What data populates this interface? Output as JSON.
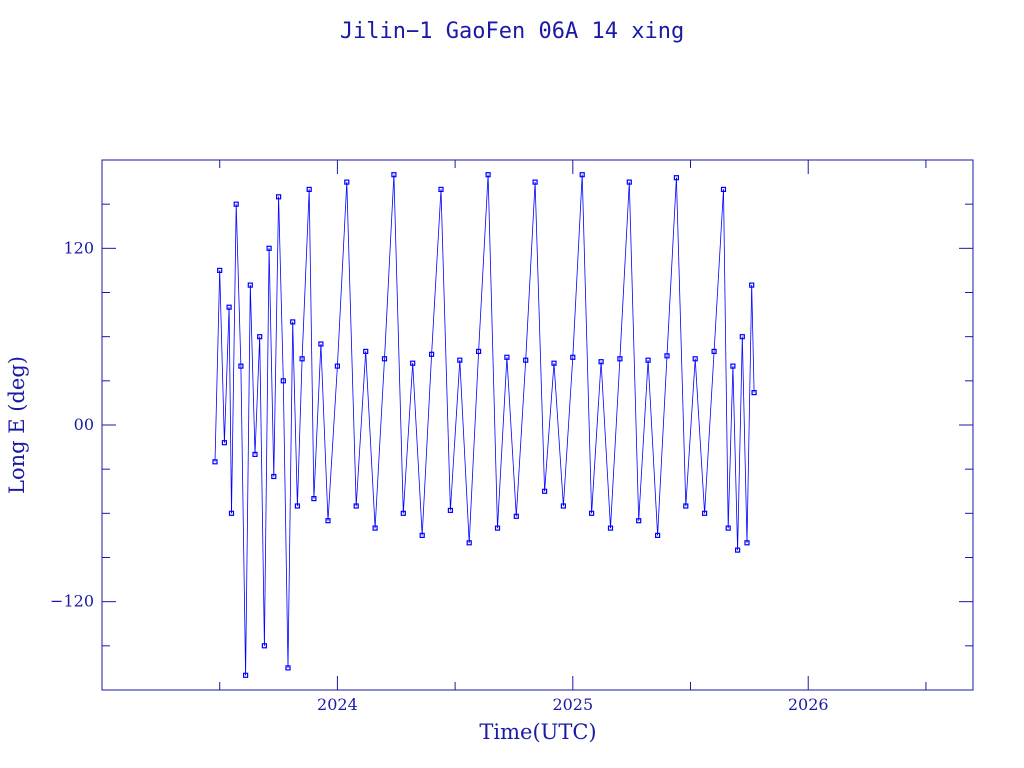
{
  "colors": {
    "series": "#0000ff",
    "frame": "#1a1aa6",
    "text": "#1a1aa6",
    "background": "#ffffff"
  },
  "chart_data": {
    "type": "scatter",
    "title": "Jilin−1 GaoFen 06A 14 xing",
    "xlabel": "Time(UTC)",
    "ylabel": "Long E (deg)",
    "xlim": [
      2023.0,
      2026.7
    ],
    "ylim": [
      -180,
      180
    ],
    "x_ticks": [
      {
        "value": 2024,
        "label": "2024"
      },
      {
        "value": 2025,
        "label": "2025"
      },
      {
        "value": 2026,
        "label": "2026"
      }
    ],
    "y_ticks": [
      {
        "value": 120,
        "label": "120"
      },
      {
        "value": 0,
        "label": "00"
      },
      {
        "value": -120,
        "label": "−120"
      }
    ],
    "grid": false,
    "markers": "squares connected by thin lines",
    "series": [
      {
        "points": [
          [
            2023.48,
            -25
          ],
          [
            2023.5,
            105
          ],
          [
            2023.52,
            -12
          ],
          [
            2023.54,
            80
          ],
          [
            2023.55,
            -60
          ],
          [
            2023.57,
            150
          ],
          [
            2023.59,
            40
          ],
          [
            2023.61,
            -170
          ],
          [
            2023.63,
            95
          ],
          [
            2023.65,
            -20
          ],
          [
            2023.67,
            60
          ],
          [
            2023.69,
            -150
          ],
          [
            2023.71,
            120
          ],
          [
            2023.73,
            -35
          ],
          [
            2023.75,
            155
          ],
          [
            2023.77,
            30
          ],
          [
            2023.79,
            -165
          ],
          [
            2023.81,
            70
          ],
          [
            2023.83,
            -55
          ],
          [
            2023.85,
            45
          ],
          [
            2023.88,
            160
          ],
          [
            2023.9,
            -50
          ],
          [
            2023.93,
            55
          ],
          [
            2023.96,
            -65
          ],
          [
            2024.0,
            40
          ],
          [
            2024.04,
            165
          ],
          [
            2024.08,
            -55
          ],
          [
            2024.12,
            50
          ],
          [
            2024.16,
            -70
          ],
          [
            2024.2,
            45
          ],
          [
            2024.24,
            170
          ],
          [
            2024.28,
            -60
          ],
          [
            2024.32,
            42
          ],
          [
            2024.36,
            -75
          ],
          [
            2024.4,
            48
          ],
          [
            2024.44,
            160
          ],
          [
            2024.48,
            -58
          ],
          [
            2024.52,
            44
          ],
          [
            2024.56,
            -80
          ],
          [
            2024.6,
            50
          ],
          [
            2024.64,
            170
          ],
          [
            2024.68,
            -70
          ],
          [
            2024.72,
            46
          ],
          [
            2024.76,
            -62
          ],
          [
            2024.8,
            44
          ],
          [
            2024.84,
            165
          ],
          [
            2024.88,
            -45
          ],
          [
            2024.92,
            42
          ],
          [
            2024.96,
            -55
          ],
          [
            2025.0,
            46
          ],
          [
            2025.04,
            170
          ],
          [
            2025.08,
            -60
          ],
          [
            2025.12,
            43
          ],
          [
            2025.16,
            -70
          ],
          [
            2025.2,
            45
          ],
          [
            2025.24,
            165
          ],
          [
            2025.28,
            -65
          ],
          [
            2025.32,
            44
          ],
          [
            2025.36,
            -75
          ],
          [
            2025.4,
            47
          ],
          [
            2025.44,
            168
          ],
          [
            2025.48,
            -55
          ],
          [
            2025.52,
            45
          ],
          [
            2025.56,
            -60
          ],
          [
            2025.6,
            50
          ],
          [
            2025.64,
            160
          ],
          [
            2025.66,
            -70
          ],
          [
            2025.68,
            40
          ],
          [
            2025.7,
            -85
          ],
          [
            2025.72,
            60
          ],
          [
            2025.74,
            -80
          ],
          [
            2025.76,
            95
          ],
          [
            2025.77,
            22
          ]
        ]
      }
    ]
  }
}
